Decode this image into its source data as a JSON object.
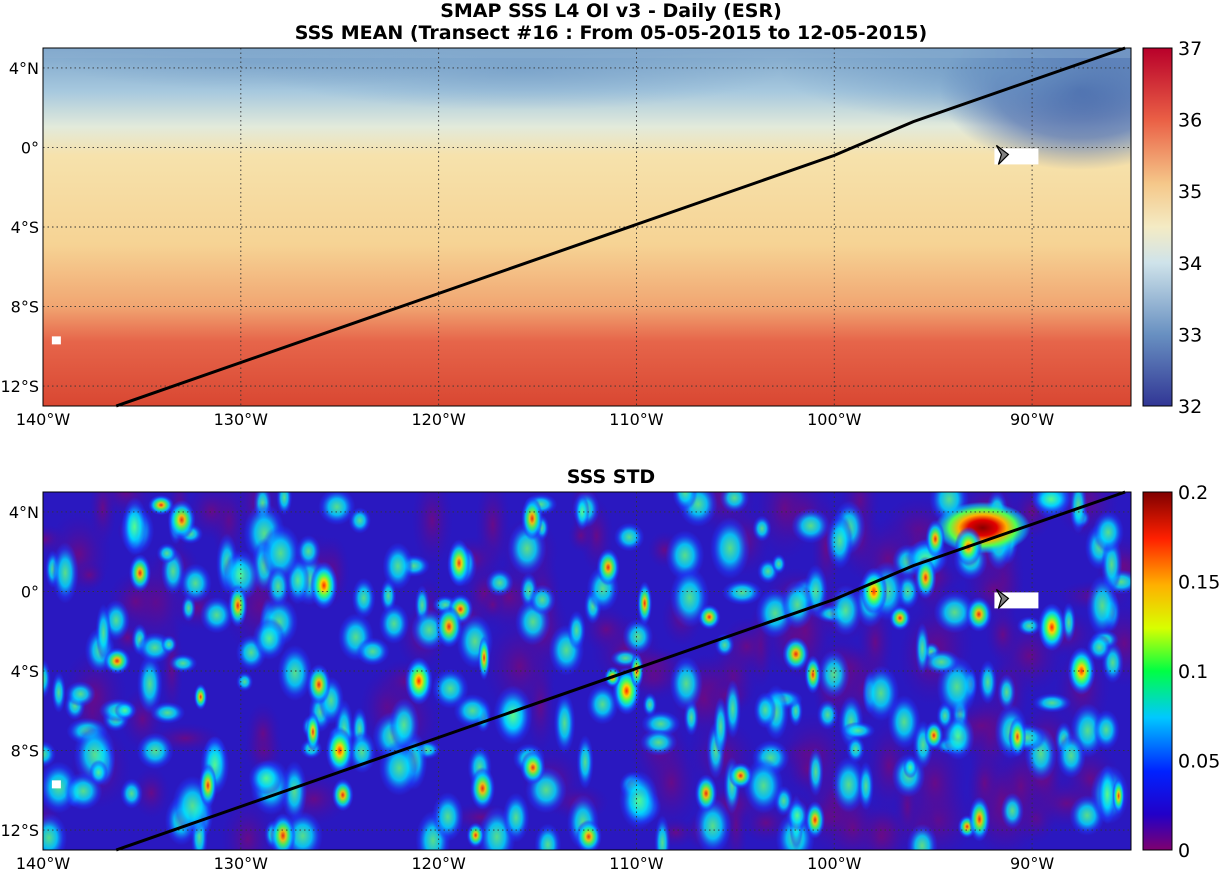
{
  "titles": {
    "line1": "SMAP SSS L4 OI v3 - Daily (ESR)",
    "line2": "SSS MEAN (Transect #16 : From 05-05-2015 to 12-05-2015)",
    "line3": "SSS STD"
  },
  "chart_data": [
    {
      "type": "heatmap",
      "title": "SSS MEAN (Transect #16 : From 05-05-2015 to 12-05-2015)",
      "xlabel": "",
      "ylabel": "",
      "xlim": [
        -140,
        -85
      ],
      "ylim": [
        -13,
        5
      ],
      "xticks": [
        -140,
        -130,
        -120,
        -110,
        -100,
        -90
      ],
      "xtick_labels": [
        "140°W",
        "130°W",
        "120°W",
        "110°W",
        "100°W",
        "90°W"
      ],
      "yticks": [
        4,
        0,
        -4,
        -8,
        -12
      ],
      "ytick_labels": [
        "4°N",
        "0°",
        "4°S",
        "8°S",
        "12°S"
      ],
      "grid": true,
      "colorbar": {
        "range": [
          32,
          37
        ],
        "ticks": [
          32,
          33,
          34,
          35,
          36,
          37
        ],
        "colormap": "RdYlBu reversed (blue low, red high)"
      },
      "field_description_by_latitude": [
        {
          "lat": 4,
          "value": 33.6
        },
        {
          "lat": 2,
          "value": 34.3
        },
        {
          "lat": 0,
          "value": 34.9
        },
        {
          "lat": -4,
          "value": 35.1
        },
        {
          "lat": -8,
          "value": 35.5
        },
        {
          "lat": -12,
          "value": 36.0
        }
      ],
      "transect_line": {
        "x": [
          -136.3,
          -100,
          -96,
          -85.3
        ],
        "y": [
          -13,
          -0.4,
          1.3,
          5
        ]
      },
      "marker": {
        "type": "ship-chevron",
        "x": -91.5,
        "y": -0.4,
        "color": "#808080"
      }
    },
    {
      "type": "heatmap",
      "title": "SSS STD",
      "xlabel": "",
      "ylabel": "",
      "xlim": [
        -140,
        -85
      ],
      "ylim": [
        -13,
        5
      ],
      "xticks": [
        -140,
        -130,
        -120,
        -110,
        -100,
        -90
      ],
      "xtick_labels": [
        "140°W",
        "130°W",
        "120°W",
        "110°W",
        "100°W",
        "90°W"
      ],
      "yticks": [
        4,
        0,
        -4,
        -8,
        -12
      ],
      "ytick_labels": [
        "4°N",
        "0°",
        "4°S",
        "8°S",
        "12°S"
      ],
      "grid": true,
      "colorbar": {
        "range": [
          0,
          0.2
        ],
        "ticks": [
          0,
          0.05,
          0.1,
          0.15,
          0.2
        ],
        "tick_labels": [
          "0",
          "0.05",
          "0.1",
          "0.15",
          "0.2"
        ],
        "colormap": "jet"
      },
      "hotspots": [
        {
          "x": -92.5,
          "y": 3.2,
          "value": 0.2
        },
        {
          "x": -98,
          "y": 0,
          "value": 0.17
        },
        {
          "x": -87.5,
          "y": -4,
          "value": 0.17
        },
        {
          "x": -125.8,
          "y": 0.3,
          "value": 0.15
        },
        {
          "x": -121,
          "y": -4.5,
          "value": 0.14
        },
        {
          "x": -125,
          "y": -8,
          "value": 0.14
        },
        {
          "x": -89,
          "y": -1.8,
          "value": 0.15
        },
        {
          "x": -110.5,
          "y": -5,
          "value": 0.12
        }
      ],
      "transect_line": {
        "x": [
          -136.3,
          -100,
          -96,
          -85.3
        ],
        "y": [
          -13,
          -0.4,
          1.3,
          5
        ]
      },
      "marker": {
        "type": "ship-chevron",
        "x": -91.5,
        "y": -0.4,
        "color": "#808080"
      }
    }
  ]
}
